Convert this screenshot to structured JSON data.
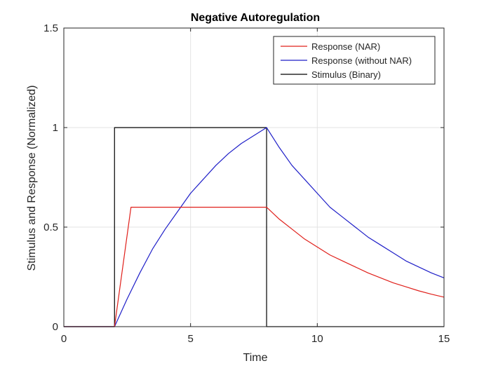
{
  "chart_data": {
    "type": "line",
    "title": "Negative Autoregulation",
    "xlabel": "Time",
    "ylabel": "Stimulus and Response (Normalized)",
    "xlim": [
      0,
      15
    ],
    "ylim": [
      0,
      1.5
    ],
    "xticks": [
      0,
      5,
      10,
      15
    ],
    "yticks": [
      0,
      0.5,
      1,
      1.5
    ],
    "xtick_labels": [
      "0",
      "5",
      "10",
      "15"
    ],
    "ytick_labels": [
      "0",
      "0.5",
      "1",
      "1.5"
    ],
    "grid": true,
    "legend_position": "top-right",
    "series": [
      {
        "name": "Response (NAR)",
        "color": "#e0201b",
        "x": [
          0,
          2,
          2.65,
          8,
          8.5,
          9,
          9.5,
          10,
          10.5,
          11,
          11.5,
          12,
          12.5,
          13,
          13.5,
          14,
          14.5,
          15
        ],
        "y": [
          0,
          0,
          0.6,
          0.6,
          0.54,
          0.49,
          0.44,
          0.4,
          0.36,
          0.33,
          0.3,
          0.27,
          0.245,
          0.22,
          0.2,
          0.18,
          0.163,
          0.148
        ]
      },
      {
        "name": "Response (without NAR)",
        "color": "#1f1fc8",
        "x": [
          0,
          2,
          2.5,
          3,
          3.5,
          4,
          4.5,
          5,
          5.5,
          6,
          6.5,
          7,
          7.5,
          8,
          8.5,
          9,
          9.5,
          10,
          10.5,
          11,
          11.5,
          12,
          12.5,
          13,
          13.5,
          14,
          14.5,
          15
        ],
        "y": [
          0,
          0,
          0.14,
          0.27,
          0.39,
          0.49,
          0.58,
          0.67,
          0.74,
          0.81,
          0.87,
          0.92,
          0.96,
          1.0,
          0.9,
          0.81,
          0.74,
          0.67,
          0.6,
          0.55,
          0.5,
          0.45,
          0.41,
          0.37,
          0.33,
          0.3,
          0.27,
          0.245
        ]
      },
      {
        "name": "Stimulus (Binary)",
        "color": "#000000",
        "x": [
          0,
          2,
          2,
          8,
          8,
          15
        ],
        "y": [
          0,
          0,
          1,
          1,
          0,
          0
        ]
      }
    ]
  }
}
